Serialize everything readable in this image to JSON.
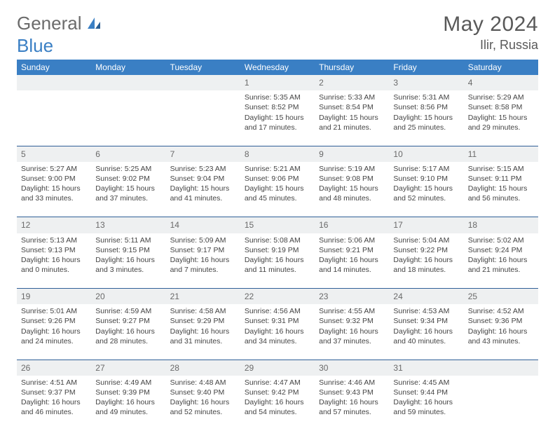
{
  "brand": {
    "word1": "General",
    "word2": "Blue"
  },
  "title": "May 2024",
  "location": "Ilir, Russia",
  "day_header_bg": "#3a7fc4",
  "day_header_color": "#ffffff",
  "daynum_bg": "#eef0f1",
  "row_border_color": "#2f5f97",
  "days": [
    "Sunday",
    "Monday",
    "Tuesday",
    "Wednesday",
    "Thursday",
    "Friday",
    "Saturday"
  ],
  "weeks": [
    {
      "nums": [
        "",
        "",
        "",
        "1",
        "2",
        "3",
        "4"
      ],
      "cells": [
        null,
        null,
        null,
        {
          "sunrise": "Sunrise: 5:35 AM",
          "sunset": "Sunset: 8:52 PM",
          "day1": "Daylight: 15 hours",
          "day2": "and 17 minutes."
        },
        {
          "sunrise": "Sunrise: 5:33 AM",
          "sunset": "Sunset: 8:54 PM",
          "day1": "Daylight: 15 hours",
          "day2": "and 21 minutes."
        },
        {
          "sunrise": "Sunrise: 5:31 AM",
          "sunset": "Sunset: 8:56 PM",
          "day1": "Daylight: 15 hours",
          "day2": "and 25 minutes."
        },
        {
          "sunrise": "Sunrise: 5:29 AM",
          "sunset": "Sunset: 8:58 PM",
          "day1": "Daylight: 15 hours",
          "day2": "and 29 minutes."
        }
      ]
    },
    {
      "nums": [
        "5",
        "6",
        "7",
        "8",
        "9",
        "10",
        "11"
      ],
      "cells": [
        {
          "sunrise": "Sunrise: 5:27 AM",
          "sunset": "Sunset: 9:00 PM",
          "day1": "Daylight: 15 hours",
          "day2": "and 33 minutes."
        },
        {
          "sunrise": "Sunrise: 5:25 AM",
          "sunset": "Sunset: 9:02 PM",
          "day1": "Daylight: 15 hours",
          "day2": "and 37 minutes."
        },
        {
          "sunrise": "Sunrise: 5:23 AM",
          "sunset": "Sunset: 9:04 PM",
          "day1": "Daylight: 15 hours",
          "day2": "and 41 minutes."
        },
        {
          "sunrise": "Sunrise: 5:21 AM",
          "sunset": "Sunset: 9:06 PM",
          "day1": "Daylight: 15 hours",
          "day2": "and 45 minutes."
        },
        {
          "sunrise": "Sunrise: 5:19 AM",
          "sunset": "Sunset: 9:08 PM",
          "day1": "Daylight: 15 hours",
          "day2": "and 48 minutes."
        },
        {
          "sunrise": "Sunrise: 5:17 AM",
          "sunset": "Sunset: 9:10 PM",
          "day1": "Daylight: 15 hours",
          "day2": "and 52 minutes."
        },
        {
          "sunrise": "Sunrise: 5:15 AM",
          "sunset": "Sunset: 9:11 PM",
          "day1": "Daylight: 15 hours",
          "day2": "and 56 minutes."
        }
      ]
    },
    {
      "nums": [
        "12",
        "13",
        "14",
        "15",
        "16",
        "17",
        "18"
      ],
      "cells": [
        {
          "sunrise": "Sunrise: 5:13 AM",
          "sunset": "Sunset: 9:13 PM",
          "day1": "Daylight: 16 hours",
          "day2": "and 0 minutes."
        },
        {
          "sunrise": "Sunrise: 5:11 AM",
          "sunset": "Sunset: 9:15 PM",
          "day1": "Daylight: 16 hours",
          "day2": "and 3 minutes."
        },
        {
          "sunrise": "Sunrise: 5:09 AM",
          "sunset": "Sunset: 9:17 PM",
          "day1": "Daylight: 16 hours",
          "day2": "and 7 minutes."
        },
        {
          "sunrise": "Sunrise: 5:08 AM",
          "sunset": "Sunset: 9:19 PM",
          "day1": "Daylight: 16 hours",
          "day2": "and 11 minutes."
        },
        {
          "sunrise": "Sunrise: 5:06 AM",
          "sunset": "Sunset: 9:21 PM",
          "day1": "Daylight: 16 hours",
          "day2": "and 14 minutes."
        },
        {
          "sunrise": "Sunrise: 5:04 AM",
          "sunset": "Sunset: 9:22 PM",
          "day1": "Daylight: 16 hours",
          "day2": "and 18 minutes."
        },
        {
          "sunrise": "Sunrise: 5:02 AM",
          "sunset": "Sunset: 9:24 PM",
          "day1": "Daylight: 16 hours",
          "day2": "and 21 minutes."
        }
      ]
    },
    {
      "nums": [
        "19",
        "20",
        "21",
        "22",
        "23",
        "24",
        "25"
      ],
      "cells": [
        {
          "sunrise": "Sunrise: 5:01 AM",
          "sunset": "Sunset: 9:26 PM",
          "day1": "Daylight: 16 hours",
          "day2": "and 24 minutes."
        },
        {
          "sunrise": "Sunrise: 4:59 AM",
          "sunset": "Sunset: 9:27 PM",
          "day1": "Daylight: 16 hours",
          "day2": "and 28 minutes."
        },
        {
          "sunrise": "Sunrise: 4:58 AM",
          "sunset": "Sunset: 9:29 PM",
          "day1": "Daylight: 16 hours",
          "day2": "and 31 minutes."
        },
        {
          "sunrise": "Sunrise: 4:56 AM",
          "sunset": "Sunset: 9:31 PM",
          "day1": "Daylight: 16 hours",
          "day2": "and 34 minutes."
        },
        {
          "sunrise": "Sunrise: 4:55 AM",
          "sunset": "Sunset: 9:32 PM",
          "day1": "Daylight: 16 hours",
          "day2": "and 37 minutes."
        },
        {
          "sunrise": "Sunrise: 4:53 AM",
          "sunset": "Sunset: 9:34 PM",
          "day1": "Daylight: 16 hours",
          "day2": "and 40 minutes."
        },
        {
          "sunrise": "Sunrise: 4:52 AM",
          "sunset": "Sunset: 9:36 PM",
          "day1": "Daylight: 16 hours",
          "day2": "and 43 minutes."
        }
      ]
    },
    {
      "nums": [
        "26",
        "27",
        "28",
        "29",
        "30",
        "31",
        ""
      ],
      "cells": [
        {
          "sunrise": "Sunrise: 4:51 AM",
          "sunset": "Sunset: 9:37 PM",
          "day1": "Daylight: 16 hours",
          "day2": "and 46 minutes."
        },
        {
          "sunrise": "Sunrise: 4:49 AM",
          "sunset": "Sunset: 9:39 PM",
          "day1": "Daylight: 16 hours",
          "day2": "and 49 minutes."
        },
        {
          "sunrise": "Sunrise: 4:48 AM",
          "sunset": "Sunset: 9:40 PM",
          "day1": "Daylight: 16 hours",
          "day2": "and 52 minutes."
        },
        {
          "sunrise": "Sunrise: 4:47 AM",
          "sunset": "Sunset: 9:42 PM",
          "day1": "Daylight: 16 hours",
          "day2": "and 54 minutes."
        },
        {
          "sunrise": "Sunrise: 4:46 AM",
          "sunset": "Sunset: 9:43 PM",
          "day1": "Daylight: 16 hours",
          "day2": "and 57 minutes."
        },
        {
          "sunrise": "Sunrise: 4:45 AM",
          "sunset": "Sunset: 9:44 PM",
          "day1": "Daylight: 16 hours",
          "day2": "and 59 minutes."
        },
        null
      ]
    }
  ]
}
